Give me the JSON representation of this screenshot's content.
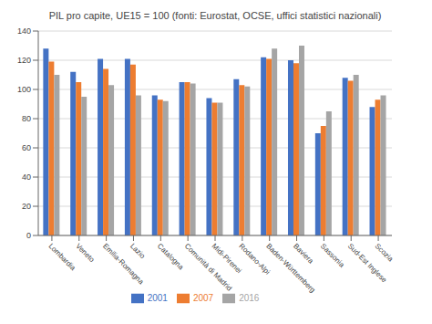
{
  "chart_data": {
    "type": "bar",
    "title": "PIL pro capite, UE15 = 100 (fonti: Eurostat, OCSE, uffici statistici nazionali)",
    "categories": [
      "Lombardia",
      "Veneto",
      "Emilia-Romagna",
      "Lazio",
      "Catalogna",
      "Comunità di Madrid",
      "Midi-Pirenei",
      "Rodano-Alpi",
      "Baden-Württemberg",
      "Baviera",
      "Sassonia",
      "Sud-Est Inglese",
      "Scozia"
    ],
    "series": [
      {
        "name": "2001",
        "color": "#4472C4",
        "values": [
          128,
          112,
          121,
          121,
          96,
          105,
          94,
          107,
          122,
          120,
          70,
          108,
          88
        ]
      },
      {
        "name": "2007",
        "color": "#ED7D31",
        "values": [
          119,
          105,
          114,
          117,
          93,
          105,
          91,
          103,
          121,
          118,
          75,
          106,
          93
        ]
      },
      {
        "name": "2016",
        "color": "#A5A5A5",
        "values": [
          110,
          95,
          103,
          96,
          92,
          104,
          91,
          102,
          128,
          130,
          85,
          110,
          96
        ]
      }
    ],
    "ylim": [
      0,
      140
    ],
    "yticks": [
      0,
      20,
      40,
      60,
      80,
      100,
      120,
      140
    ],
    "grid": true,
    "legend": "bottom"
  }
}
